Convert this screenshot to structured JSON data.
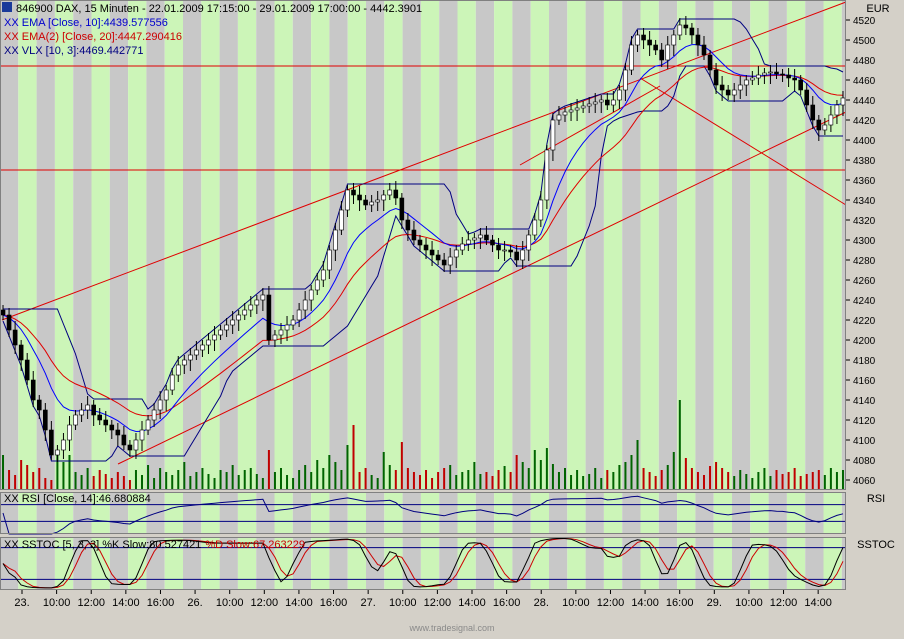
{
  "header": {
    "symbol_line": "846900  DAX, 15 Minuten - 22.01.2009 17:15:00 - 29.01.2009 17:00:00 - 4442.3901",
    "ema10": "EMA [Close, 10]:4439.577556",
    "ema20": "EMA(2) [Close, 20]:4447.290416",
    "vlx": "VLX [10, 3]:4469.442771",
    "rsi": "RSI [Close, 14]:46.680884",
    "sstoc_a": "SSTOC [5, 3, 3] %K Slow:80.527421",
    "sstoc_b": "%D Slow:67.263229"
  },
  "axes": {
    "currency": "EUR",
    "rsi_label": "RSI",
    "sstoc_label": "SSTOC",
    "y_ticks": [
      4060,
      4080,
      4100,
      4120,
      4140,
      4160,
      4180,
      4200,
      4220,
      4240,
      4260,
      4280,
      4300,
      4320,
      4340,
      4360,
      4380,
      4400,
      4420,
      4440,
      4460,
      4480,
      4500,
      4520
    ],
    "x_ticks": [
      "23.",
      "10:00",
      "12:00",
      "14:00",
      "16:00",
      "26.",
      "10:00",
      "12:00",
      "14:00",
      "16:00",
      "27.",
      "10:00",
      "12:00",
      "14:00",
      "16:00",
      "28.",
      "10:00",
      "12:00",
      "14:00",
      "16:00",
      "29.",
      "10:00",
      "12:00",
      "14:00"
    ]
  },
  "footer": {
    "watermark": "www.tradesignal.com"
  },
  "colors": {
    "bull": "#006400",
    "bear": "#c00000",
    "ema10": "#0000ff",
    "ema20": "#e00000",
    "vlx": "#000080",
    "band_green": "#ccf5b8",
    "band_gray": "#c8c8c8",
    "lines": "#e00000"
  },
  "chart_data": {
    "type": "candlestick",
    "ylim": [
      4050,
      4540
    ],
    "closes": [
      4225,
      4210,
      4195,
      4180,
      4160,
      4140,
      4130,
      4110,
      4085,
      4090,
      4100,
      4115,
      4125,
      4130,
      4135,
      4125,
      4120,
      4115,
      4110,
      4105,
      4095,
      4090,
      4100,
      4110,
      4120,
      4130,
      4140,
      4150,
      4165,
      4175,
      4180,
      4185,
      4190,
      4195,
      4200,
      4205,
      4210,
      4215,
      4220,
      4225,
      4230,
      4235,
      4240,
      4245,
      4200,
      4205,
      4210,
      4215,
      4220,
      4230,
      4240,
      4250,
      4260,
      4270,
      4290,
      4310,
      4330,
      4350,
      4345,
      4340,
      4335,
      4338,
      4340,
      4345,
      4350,
      4342,
      4320,
      4310,
      4300,
      4295,
      4290,
      4285,
      4280,
      4275,
      4283,
      4290,
      4296,
      4300,
      4302,
      4305,
      4300,
      4295,
      4290,
      4290,
      4288,
      4280,
      4290,
      4305,
      4320,
      4340,
      4390,
      4420,
      4425,
      4428,
      4430,
      4432,
      4434,
      4436,
      4438,
      4440,
      4435,
      4440,
      4450,
      4470,
      4495,
      4505,
      4500,
      4495,
      4490,
      4480,
      4495,
      4505,
      4515,
      4512,
      4505,
      4495,
      4485,
      4470,
      4455,
      4450,
      4445,
      4450,
      4455,
      4460,
      4462,
      4465,
      4467,
      4468,
      4466,
      4465,
      4462,
      4460,
      4450,
      4435,
      4420,
      4410,
      4415,
      4425,
      4435,
      4442
    ],
    "volumes": [
      35,
      20,
      15,
      30,
      25,
      18,
      22,
      12,
      10,
      40,
      28,
      35,
      18,
      15,
      22,
      14,
      20,
      16,
      12,
      18,
      14,
      10,
      20,
      15,
      25,
      12,
      22,
      18,
      15,
      20,
      28,
      14,
      18,
      22,
      16,
      12,
      20,
      18,
      25,
      15,
      20,
      22,
      16,
      12,
      40,
      18,
      22,
      15,
      12,
      20,
      25,
      18,
      30,
      22,
      35,
      28,
      20,
      45,
      65,
      18,
      22,
      15,
      12,
      38,
      25,
      20,
      48,
      22,
      18,
      15,
      20,
      12,
      18,
      22,
      25,
      15,
      18,
      20,
      28,
      16,
      18,
      14,
      20,
      24,
      18,
      35,
      28,
      22,
      40,
      30,
      42,
      26,
      18,
      22,
      15,
      20,
      14,
      16,
      22,
      12,
      20,
      18,
      25,
      28,
      35,
      50,
      22,
      18,
      14,
      20,
      25,
      38,
      90,
      32,
      22,
      18,
      15,
      24,
      28,
      22,
      18,
      14,
      20,
      16,
      12,
      18,
      22,
      14,
      20,
      16,
      18,
      22,
      14,
      16,
      18,
      20,
      15,
      22,
      18,
      20
    ],
    "levels": [
      4474,
      4370
    ],
    "rsi_ylim": [
      0,
      100
    ],
    "rsi_levels": [
      70,
      30
    ],
    "stoc_levels": [
      80,
      20
    ]
  }
}
